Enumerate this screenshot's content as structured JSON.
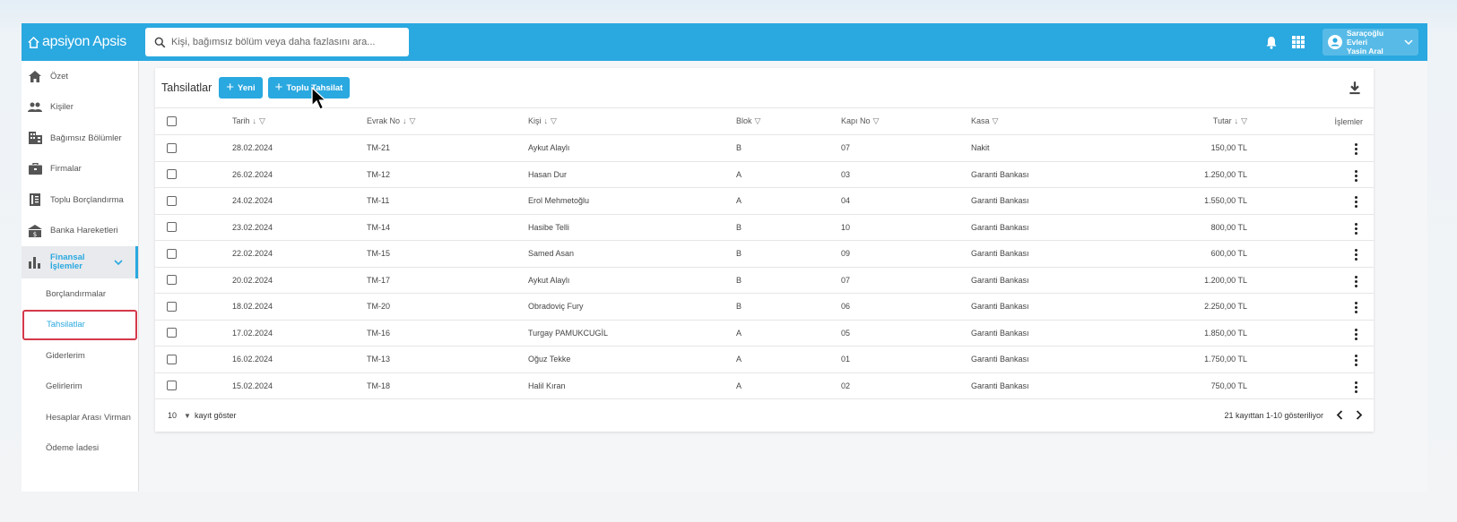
{
  "app": {
    "logo_text": "apsiyon Apsis",
    "brand_color": "#2aa8e0",
    "accent_outline_color": "#d4394a"
  },
  "search": {
    "placeholder": "Kişi, bağımsız bölüm veya daha fazlasını ara..."
  },
  "user": {
    "line1": "Saraçoğlu Evleri",
    "line2": "Yasin Aral"
  },
  "sidebar": {
    "items": [
      {
        "label": "Özet",
        "icon": "home-icon"
      },
      {
        "label": "Kişiler",
        "icon": "people-icon"
      },
      {
        "label": "Bağımsız Bölümler",
        "icon": "building-icon"
      },
      {
        "label": "Firmalar",
        "icon": "briefcase-icon"
      },
      {
        "label": "Toplu Borçlandırma",
        "icon": "ledger-icon"
      },
      {
        "label": "Banka Hareketleri",
        "icon": "bank-icon"
      }
    ],
    "active_group": {
      "label_line1": "Finansal",
      "label_line2": "İşlemler",
      "icon": "bar-chart-icon"
    },
    "sub_items": [
      {
        "label": "Borçlandırmalar"
      },
      {
        "label": "Tahsilatlar",
        "selected": true
      },
      {
        "label": "Giderlerim"
      },
      {
        "label": "Gelirlerim"
      },
      {
        "label": "Hesaplar Arası Virman"
      },
      {
        "label": "Ödeme İadesi"
      }
    ]
  },
  "main": {
    "title": "Tahsilatlar",
    "new_button": "Yeni",
    "bulk_button": "Toplu Tahsilat",
    "columns": {
      "date": "Tarih",
      "doc_no": "Evrak No",
      "person": "Kişi",
      "block": "Blok",
      "door": "Kapı No",
      "cash": "Kasa",
      "amount": "Tutar",
      "actions": "İşlemler"
    },
    "rows": [
      {
        "date": "28.02.2024",
        "doc_no": "TM-21",
        "person": "Aykut Alaylı",
        "block": "B",
        "door": "07",
        "cash": "Nakit",
        "amount": "150,00 TL"
      },
      {
        "date": "26.02.2024",
        "doc_no": "TM-12",
        "person": "Hasan Dur",
        "block": "A",
        "door": "03",
        "cash": "Garanti Bankası",
        "amount": "1.250,00 TL"
      },
      {
        "date": "24.02.2024",
        "doc_no": "TM-11",
        "person": "Erol Mehmetoğlu",
        "block": "A",
        "door": "04",
        "cash": "Garanti Bankası",
        "amount": "1.550,00 TL"
      },
      {
        "date": "23.02.2024",
        "doc_no": "TM-14",
        "person": "Hasibe Telli",
        "block": "B",
        "door": "10",
        "cash": "Garanti Bankası",
        "amount": "800,00 TL"
      },
      {
        "date": "22.02.2024",
        "doc_no": "TM-15",
        "person": "Samed Asan",
        "block": "B",
        "door": "09",
        "cash": "Garanti Bankası",
        "amount": "600,00 TL"
      },
      {
        "date": "20.02.2024",
        "doc_no": "TM-17",
        "person": "Aykut Alaylı",
        "block": "B",
        "door": "07",
        "cash": "Garanti Bankası",
        "amount": "1.200,00 TL"
      },
      {
        "date": "18.02.2024",
        "doc_no": "TM-20",
        "person": "Obradoviç Fury",
        "block": "B",
        "door": "06",
        "cash": "Garanti Bankası",
        "amount": "2.250,00 TL"
      },
      {
        "date": "17.02.2024",
        "doc_no": "TM-16",
        "person": "Turgay PAMUKCUGİL",
        "block": "A",
        "door": "05",
        "cash": "Garanti Bankası",
        "amount": "1.850,00 TL"
      },
      {
        "date": "16.02.2024",
        "doc_no": "TM-13",
        "person": "Oğuz Tekke",
        "block": "A",
        "door": "01",
        "cash": "Garanti Bankası",
        "amount": "1.750,00 TL"
      },
      {
        "date": "15.02.2024",
        "doc_no": "TM-18",
        "person": "Halil Kıran",
        "block": "A",
        "door": "02",
        "cash": "Garanti Bankası",
        "amount": "750,00 TL"
      }
    ],
    "footer": {
      "per_page_value": "10",
      "per_page_label": "kayıt göster",
      "summary": "21 kayıttan 1-10 gösteriliyor"
    }
  }
}
